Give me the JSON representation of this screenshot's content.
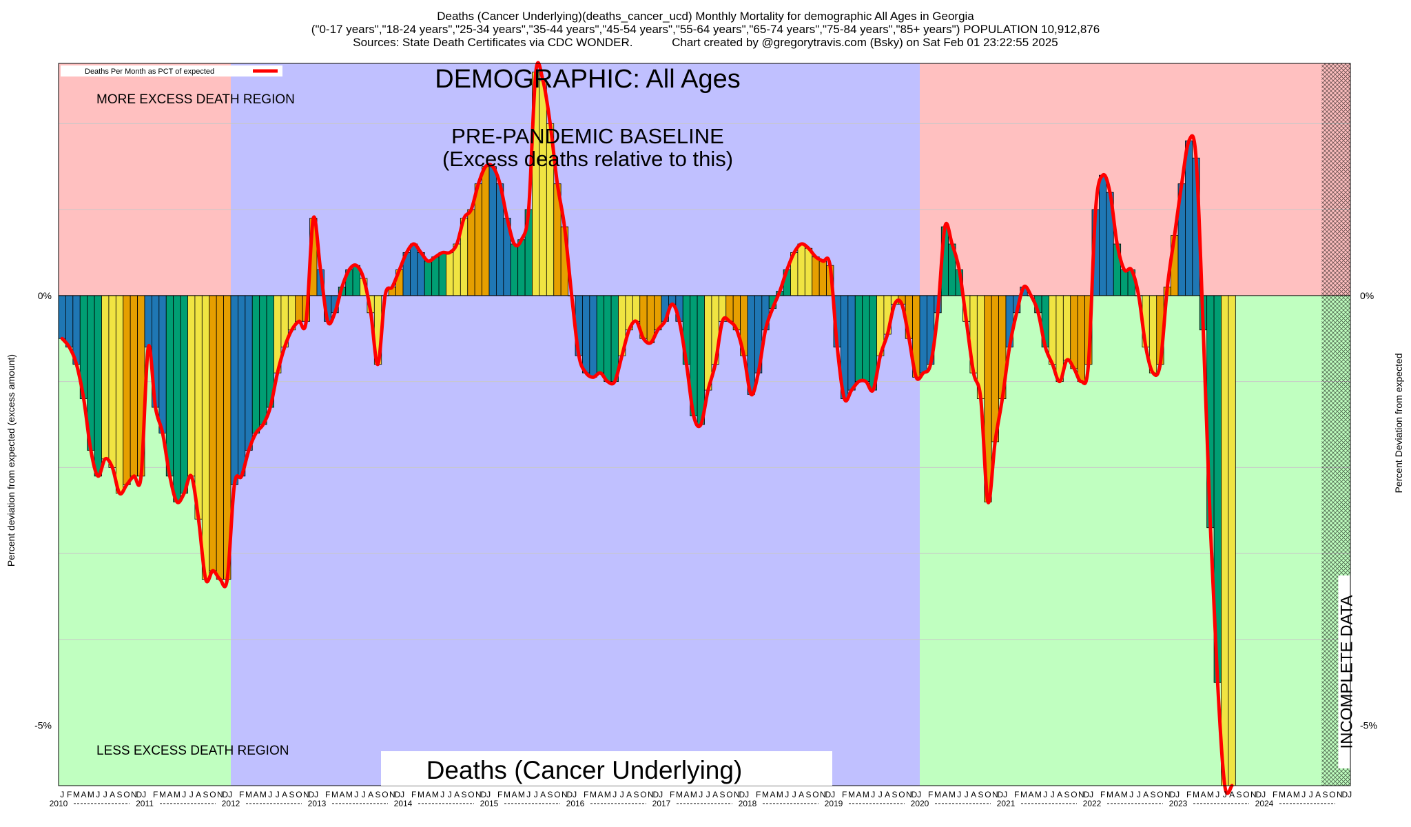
{
  "header": {
    "line1": "Deaths (Cancer Underlying)(deaths_cancer_ucd) Monthly Mortality for demographic All Ages in Georgia",
    "line2": "(\"0-17 years\",\"18-24 years\",\"25-34 years\",\"35-44 years\",\"45-54 years\",\"55-64 years\",\"65-74 years\",\"75-84 years\",\"85+ years\") POPULATION 10,912,876",
    "line3": "Sources: State Death Certificates via CDC WONDER.            Chart created by @gregorytravis.com (Bsky) on Sat Feb 01 23:22:55 2025"
  },
  "colors": {
    "excess_region": "#ffc0c0",
    "less_region": "#c0ffc0",
    "baseline_region": "#c0c0ff",
    "line": "#ff0000",
    "bar_cycle": [
      "#1f77b4",
      "#009e73",
      "#f0e442",
      "#e69f00"
    ]
  },
  "chart_data": {
    "type": "bar",
    "y_unit": "%",
    "ylim": [
      -5.7,
      2.7
    ],
    "yticks": [
      {
        "value": 0,
        "label": "0%"
      },
      {
        "value": -5,
        "label": "-5%"
      }
    ],
    "gridlines": [
      2,
      1,
      -1,
      -2,
      -3,
      -4
    ],
    "ylabel_left": "Percent deviation from expected (excess amount)",
    "ylabel_right": "Percent Deviation from expected",
    "legend": {
      "label": "Deaths Per Month as PCT of expected",
      "position": "top-left"
    },
    "x_start": "2010-01",
    "month_letters": [
      "J",
      "F",
      "M",
      "A",
      "M",
      "J",
      "J",
      "A",
      "S",
      "O",
      "N",
      "D"
    ],
    "years": [
      "2010",
      "2011",
      "2012",
      "2013",
      "2014",
      "2015",
      "2016",
      "2017",
      "2018",
      "2019",
      "2020",
      "2021",
      "2022",
      "2023",
      "2024"
    ],
    "regions": [
      {
        "from": "2010-01",
        "to": "2011-12",
        "kind": "pre",
        "label_top": "MORE EXCESS DEATH REGION",
        "label_bottom": "LESS EXCESS DEATH REGION"
      },
      {
        "from": "2012-01",
        "to": "2019-12",
        "kind": "baseline"
      },
      {
        "from": "2020-01",
        "to": "2024-08",
        "kind": "post"
      },
      {
        "from": "2024-09",
        "to": "2024-12",
        "kind": "incomplete",
        "label": "INCOMPLETE DATA"
      }
    ],
    "annotations": {
      "demographic": "DEMOGRAPHIC: All Ages",
      "baseline_title": "PRE-PANDEMIC BASELINE",
      "baseline_sub": "(Excess deaths relative to this)",
      "bottom_title": "Deaths (Cancer Underlying)"
    },
    "values": [
      -0.5,
      -0.6,
      -0.8,
      -1.2,
      -1.8,
      -2.1,
      -1.9,
      -2.0,
      -2.3,
      -2.2,
      -2.1,
      -2.1,
      -0.6,
      -1.3,
      -1.6,
      -2.1,
      -2.4,
      -2.3,
      -2.1,
      -2.6,
      -3.3,
      -3.2,
      -3.3,
      -3.3,
      -2.2,
      -2.1,
      -1.8,
      -1.6,
      -1.5,
      -1.3,
      -0.9,
      -0.6,
      -0.4,
      -0.3,
      -0.3,
      0.9,
      0.3,
      -0.3,
      -0.2,
      0.1,
      0.3,
      0.35,
      0.2,
      -0.2,
      -0.8,
      0.0,
      0.1,
      0.3,
      0.5,
      0.6,
      0.5,
      0.4,
      0.45,
      0.5,
      0.5,
      0.6,
      0.9,
      1.0,
      1.3,
      1.5,
      1.5,
      1.3,
      0.9,
      0.6,
      0.65,
      1.0,
      2.6,
      2.5,
      2.0,
      1.3,
      0.8,
      0.0,
      -0.7,
      -0.9,
      -0.95,
      -0.9,
      -1.0,
      -1.0,
      -0.7,
      -0.4,
      -0.3,
      -0.5,
      -0.55,
      -0.4,
      -0.3,
      -0.1,
      -0.3,
      -0.8,
      -1.4,
      -1.5,
      -1.1,
      -0.8,
      -0.3,
      -0.3,
      -0.4,
      -0.7,
      -1.15,
      -0.9,
      -0.4,
      -0.15,
      0.05,
      0.3,
      0.5,
      0.6,
      0.55,
      0.45,
      0.4,
      0.35,
      -0.6,
      -1.2,
      -1.1,
      -1.0,
      -1.0,
      -1.1,
      -0.7,
      -0.45,
      -0.1,
      -0.1,
      -0.5,
      -0.95,
      -0.9,
      -0.8,
      -0.2,
      0.8,
      0.6,
      0.3,
      -0.3,
      -0.9,
      -1.2,
      -2.4,
      -1.7,
      -1.2,
      -0.6,
      -0.2,
      0.1,
      0.0,
      -0.2,
      -0.6,
      -0.8,
      -1.0,
      -0.75,
      -0.85,
      -1.0,
      -0.8,
      1.0,
      1.4,
      1.2,
      0.6,
      0.3,
      0.3,
      0.0,
      -0.6,
      -0.9,
      -0.8,
      0.1,
      0.7,
      1.3,
      1.8,
      1.6,
      -0.4,
      -2.7,
      -4.5,
      -5.7,
      -5.7
    ]
  }
}
